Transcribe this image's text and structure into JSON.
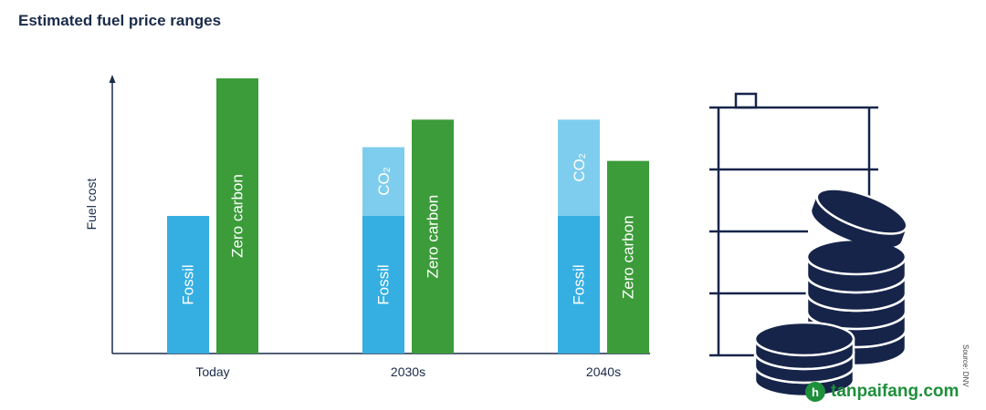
{
  "chart_data": {
    "type": "bar",
    "title": "Estimated fuel price ranges",
    "ylabel": "Fuel cost",
    "xlabel": "",
    "categories": [
      "Today",
      "2030s",
      "2040s"
    ],
    "ylim": [
      0,
      100
    ],
    "series": [
      {
        "name": "Fossil",
        "values": [
          50,
          50,
          50
        ],
        "color": "#35aee2"
      },
      {
        "name": "CO",
        "values": [
          0,
          25,
          35
        ],
        "color": "#7fcdee",
        "stack_on": "Fossil"
      },
      {
        "name": "Zero carbon",
        "values": [
          100,
          85,
          70
        ],
        "color": "#3c9c3a"
      }
    ],
    "bar_labels": {
      "fossil": "Fossil",
      "co2": "CO",
      "co2_sub": "2",
      "zero": "Zero carbon"
    }
  },
  "source": "Source: DNV",
  "watermark": {
    "badge": "h",
    "text": "tanpaifang.com"
  },
  "colors": {
    "axis": "#1a2b4a",
    "illustration": "#16244a"
  },
  "icons": [
    "fuel-barrel-icon",
    "coin-stack-icon"
  ]
}
